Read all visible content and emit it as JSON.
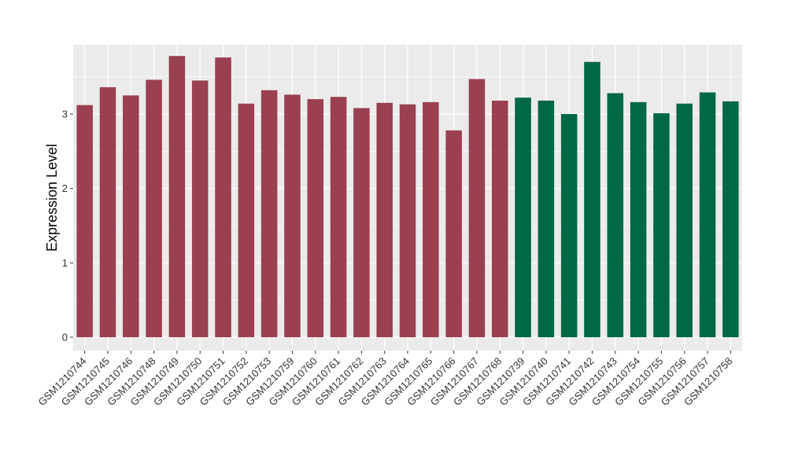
{
  "chart_data": {
    "type": "bar",
    "title": "",
    "xlabel": "",
    "ylabel": "Expression Level",
    "ylim": [
      -0.18,
      3.93
    ],
    "yticks": [
      0,
      1,
      2,
      3
    ],
    "grid": true,
    "legend": "none",
    "colors": {
      "panel_bg": "#EBEBEB",
      "grid_major": "#FFFFFF",
      "group1": "#9A4050",
      "group2": "#006845"
    },
    "categories": [
      "GSM1210744",
      "GSM1210745",
      "GSM1210746",
      "GSM1210748",
      "GSM1210749",
      "GSM1210750",
      "GSM1210751",
      "GSM1210752",
      "GSM1210753",
      "GSM1210759",
      "GSM1210760",
      "GSM1210761",
      "GSM1210762",
      "GSM1210763",
      "GSM1210764",
      "GSM1210765",
      "GSM1210766",
      "GSM1210767",
      "GSM1210768",
      "GSM1210739",
      "GSM1210740",
      "GSM1210741",
      "GSM1210742",
      "GSM1210743",
      "GSM1210754",
      "GSM1210755",
      "GSM1210756",
      "GSM1210757",
      "GSM1210758"
    ],
    "values": [
      3.12,
      3.36,
      3.25,
      3.46,
      3.78,
      3.45,
      3.76,
      3.14,
      3.32,
      3.26,
      3.2,
      3.23,
      3.08,
      3.15,
      3.13,
      3.16,
      2.78,
      3.47,
      3.18,
      3.22,
      3.18,
      3.0,
      3.7,
      3.28,
      3.16,
      3.01,
      3.14,
      3.29,
      3.17
    ],
    "groups": [
      1,
      1,
      1,
      1,
      1,
      1,
      1,
      1,
      1,
      1,
      1,
      1,
      1,
      1,
      1,
      1,
      1,
      1,
      1,
      2,
      2,
      2,
      2,
      2,
      2,
      2,
      2,
      2,
      2
    ]
  }
}
